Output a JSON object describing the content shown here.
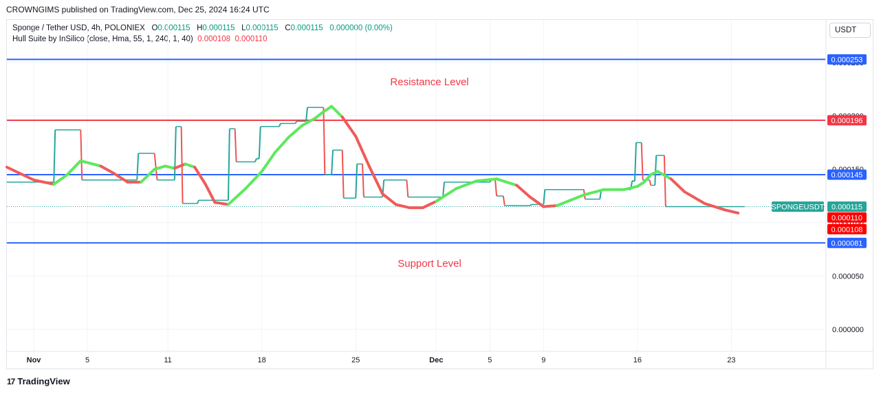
{
  "publisher_line": "CROWNGIMS published on TradingView.com, Dec 25, 2024 16:24 UTC",
  "legend": {
    "symbol": "Sponge / Tether USD, 4h, POLONIEX",
    "o_label": "O",
    "o_value": "0.000115",
    "h_label": "H",
    "h_value": "0.000115",
    "l_label": "L",
    "l_value": "0.000115",
    "c_label": "C",
    "c_value": "0.000115",
    "change": "0.000000 (0.00%)",
    "indicator": "Hull Suite by InSilico (close, Hma, 55, 1, 240, 1, 40)",
    "ind_value_1": "0.000108",
    "ind_value_2": "0.000110"
  },
  "currency": "USDT",
  "brand": "TradingView",
  "colors": {
    "up": "#26a69a",
    "down": "#ef5350",
    "hull_up": "#5ee85e",
    "hull_down": "#f05a5a",
    "resistance": "#f23645",
    "blue_line": "#2962ff",
    "label_text": "#f23645"
  },
  "chart_data": {
    "type": "line",
    "title": "Sponge / Tether USD, 4h, POLONIEX",
    "ylim": [
      -2e-05,
      0.00029
    ],
    "y_ticks": [
      {
        "value": 0.0,
        "label": "0.000000"
      },
      {
        "value": 5e-05,
        "label": "0.000050"
      },
      {
        "value": 0.0001,
        "label": "0.000100"
      },
      {
        "value": 0.00015,
        "label": "0.000150"
      },
      {
        "value": 0.0002,
        "label": "0.000200"
      },
      {
        "value": 0.00025,
        "label": "0.000250"
      }
    ],
    "x_ticks": [
      {
        "label": "Nov",
        "t": 1.0
      },
      {
        "label": "5",
        "t": 5.0
      },
      {
        "label": "11",
        "t": 11.0
      },
      {
        "label": "18",
        "t": 18.0
      },
      {
        "label": "25",
        "t": 25.0
      },
      {
        "label": "Dec",
        "t": 31.0
      },
      {
        "label": "5",
        "t": 35.0
      },
      {
        "label": "9",
        "t": 39.0
      },
      {
        "label": "16",
        "t": 46.0
      },
      {
        "label": "23",
        "t": 53.0
      }
    ],
    "xlim": [
      -1.0,
      60.0
    ],
    "horizontal_levels": [
      {
        "value": 0.000253,
        "label": "0.000253",
        "color": "#2962ff"
      },
      {
        "value": 0.000196,
        "label": "0.000196",
        "color": "#f23645"
      },
      {
        "value": 0.000145,
        "label": "0.000145",
        "color": "#2962ff"
      },
      {
        "value": 8.1e-05,
        "label": "0.000081",
        "color": "#2962ff"
      }
    ],
    "annotations": [
      {
        "text": "Resistance Level",
        "t": 30.5,
        "value": 0.000232
      },
      {
        "text": "Support Level",
        "t": 30.5,
        "value": 6.2e-05
      }
    ],
    "last_price": {
      "symbol": "SPONGEUSDT",
      "value": 0.000115,
      "label": "0.000115"
    },
    "hull_labels": [
      {
        "value": 0.00011,
        "label": "0.000110"
      },
      {
        "value": 0.000108,
        "label": "0.000108"
      }
    ],
    "price": {
      "t": [
        -1.0,
        2.5,
        2.6,
        4.5,
        4.6,
        8.7,
        8.8,
        10.0,
        10.2,
        11.5,
        11.6,
        12.0,
        12.1,
        13.2,
        13.3,
        15.5,
        15.6,
        16.0,
        16.1,
        17.5,
        17.6,
        17.8,
        17.9,
        19.3,
        19.4,
        20.5,
        20.6,
        21.3,
        21.4,
        22.6,
        22.7,
        23.2,
        23.3,
        24.0,
        24.1,
        25.0,
        25.1,
        25.5,
        25.6,
        27.0,
        27.1,
        28.8,
        28.9,
        31.5,
        31.6,
        35.0,
        35.1,
        35.4,
        35.5,
        36.0,
        36.1,
        38.0,
        38.1,
        39.0,
        39.1,
        42.0,
        42.1,
        43.2,
        43.3,
        45.5,
        45.6,
        45.8,
        45.9,
        46.3,
        46.4,
        46.9,
        47.0,
        47.3,
        47.4,
        48.0,
        48.1,
        51.5,
        51.6,
        54.0
      ],
      "v": [
        0.000138,
        0.000138,
        0.000187,
        0.000187,
        0.00014,
        0.00014,
        0.000165,
        0.000165,
        0.00014,
        0.00014,
        0.00019,
        0.00019,
        0.000118,
        0.000118,
        0.000121,
        0.000121,
        0.000188,
        0.000188,
        0.000157,
        0.000157,
        0.00016,
        0.00016,
        0.00019,
        0.00019,
        0.000193,
        0.000193,
        0.000195,
        0.000195,
        0.000208,
        0.000208,
        0.000145,
        0.000145,
        0.000168,
        0.000168,
        0.000123,
        0.000123,
        0.000155,
        0.000155,
        0.000124,
        0.000124,
        0.00014,
        0.00014,
        0.000124,
        0.000124,
        0.000138,
        0.000138,
        0.00014,
        0.00014,
        0.000125,
        0.000125,
        0.000116,
        0.000116,
        0.000117,
        0.000117,
        0.000131,
        0.000131,
        0.000122,
        0.000122,
        0.000131,
        0.000131,
        0.000139,
        0.000139,
        0.000175,
        0.000175,
        0.00014,
        0.00014,
        0.000135,
        0.000135,
        0.000163,
        0.000163,
        0.000115,
        0.000115,
        0.000115,
        0.000115
      ]
    },
    "hull": {
      "t": [
        -1.0,
        1.0,
        2.5,
        3.5,
        4.5,
        6.0,
        7.0,
        8.0,
        9.0,
        10.0,
        10.8,
        11.5,
        12.3,
        13.0,
        13.8,
        14.5,
        15.5,
        16.8,
        18.0,
        19.0,
        20.0,
        21.0,
        22.0,
        22.5,
        23.2,
        24.0,
        25.0,
        26.0,
        27.0,
        28.0,
        29.0,
        30.0,
        31.0,
        32.5,
        34.0,
        35.5,
        37.0,
        38.0,
        39.0,
        40.0,
        41.0,
        42.0,
        43.5,
        45.0,
        46.0,
        46.5,
        47.0,
        47.5,
        48.5,
        49.5,
        51.0,
        52.5,
        53.5
      ],
      "v": [
        0.000152,
        0.00014,
        0.000136,
        0.000145,
        0.000158,
        0.000153,
        0.000146,
        0.000138,
        0.000138,
        0.00015,
        0.000153,
        0.000151,
        0.000155,
        0.000152,
        0.000136,
        0.000119,
        0.000117,
        0.000132,
        0.000148,
        0.000166,
        0.00018,
        0.000191,
        0.000198,
        0.000203,
        0.000209,
        0.000199,
        0.000181,
        0.000153,
        0.000127,
        0.000117,
        0.000114,
        0.000114,
        0.00012,
        0.000132,
        0.000139,
        0.000141,
        0.000135,
        0.000124,
        0.000115,
        0.000116,
        0.000121,
        0.000126,
        0.000131,
        0.000131,
        0.000134,
        0.000138,
        0.000145,
        0.000148,
        0.000141,
        0.000129,
        0.000118,
        0.000112,
        0.000109
      ],
      "colors": [
        "down",
        "down",
        "up",
        "up",
        "up",
        "down",
        "down",
        "down",
        "up",
        "up",
        "up",
        "down",
        "up",
        "down",
        "down",
        "down",
        "up",
        "up",
        "up",
        "up",
        "up",
        "up",
        "up",
        "up",
        "up",
        "down",
        "down",
        "down",
        "down",
        "down",
        "down",
        "down",
        "up",
        "up",
        "up",
        "up",
        "down",
        "down",
        "down",
        "up",
        "up",
        "up",
        "up",
        "up",
        "up",
        "up",
        "up",
        "up",
        "down",
        "down",
        "down",
        "down",
        "down"
      ]
    }
  }
}
